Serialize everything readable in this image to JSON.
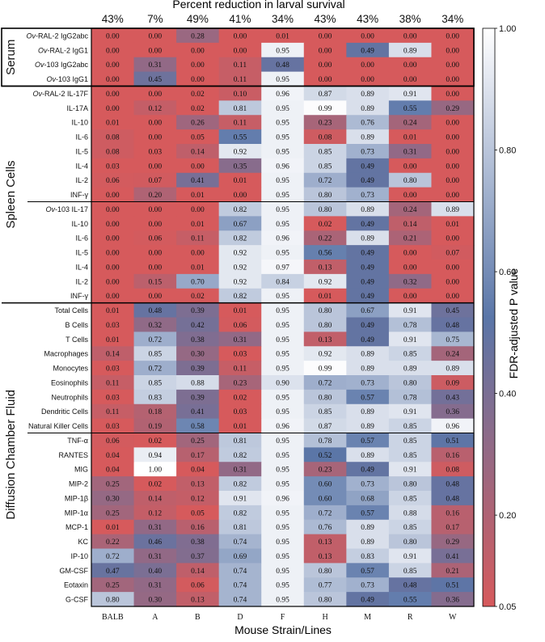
{
  "chart_data": {
    "type": "heatmap",
    "title": "Percent reduction in larval survival",
    "xlabel": "Mouse Strain/Lines",
    "colorbar_label": "FDR-adjusted P value",
    "colorbar_ticks": [
      "1.00",
      "0.80",
      "0.60",
      "0.40",
      "0.20",
      "0.05"
    ],
    "colorbar_range": [
      0.05,
      1.0
    ],
    "colors": {
      "low": "#d65a5c",
      "mid": "#5a76a8",
      "high": "#ffffff"
    },
    "columns": [
      "BALB",
      "A",
      "B",
      "D",
      "F",
      "H",
      "M",
      "R",
      "W"
    ],
    "percent_reduction": [
      "43%",
      "7%",
      "49%",
      "41%",
      "34%",
      "43%",
      "43%",
      "38%",
      "34%"
    ],
    "groups": [
      {
        "name": "Serum",
        "rows": [
          {
            "prefix": "Ov",
            "label": "-RAL-2 IgG2abc",
            "values": [
              "0.00",
              "0.00",
              "0.28",
              "0.00",
              "0.01",
              "0.00",
              "0.00",
              "0.00",
              "0.00"
            ]
          },
          {
            "prefix": "Ov",
            "label": "-RAL-2 IgG1",
            "values": [
              "0.00",
              "0.00",
              "0.00",
              "0.00",
              "0.95",
              "0.00",
              "0.49",
              "0.89",
              "0.00"
            ]
          },
          {
            "prefix": "Ov",
            "label": "-103 IgG2abc",
            "values": [
              "0.00",
              "0.31",
              "0.00",
              "0.11",
              "0.48",
              "0.00",
              "0.00",
              "0.00",
              "0.00"
            ]
          },
          {
            "prefix": "Ov",
            "label": "-103 IgG1",
            "values": [
              "0.00",
              "0.45",
              "0.00",
              "0.11",
              "0.95",
              "0.00",
              "0.00",
              "0.00",
              "0.00"
            ]
          }
        ]
      },
      {
        "name": "Spleen Cells",
        "rows": [
          {
            "prefix": "Ov",
            "label": "-RAL-2 IL-17F",
            "values": [
              "0.00",
              "0.00",
              "0.02",
              "0.10",
              "0.96",
              "0.87",
              "0.89",
              "0.91",
              "0.00"
            ]
          },
          {
            "label": "IL-17A",
            "values": [
              "0.00",
              "0.12",
              "0.02",
              "0.81",
              "0.95",
              "0.99",
              "0.89",
              "0.55",
              "0.29"
            ]
          },
          {
            "label": "IL-10",
            "values": [
              "0.01",
              "0.00",
              "0.26",
              "0.11",
              "0.95",
              "0.23",
              "0.76",
              "0.24",
              "0.00"
            ]
          },
          {
            "label": "IL-6",
            "values": [
              "0.08",
              "0.00",
              "0.05",
              "0.55",
              "0.95",
              "0.08",
              "0.89",
              "0.01",
              "0.00"
            ]
          },
          {
            "label": "IL-5",
            "values": [
              "0.08",
              "0.03",
              "0.14",
              "0.92",
              "0.95",
              "0.85",
              "0.73",
              "0.31",
              "0.00"
            ]
          },
          {
            "label": "IL-4",
            "values": [
              "0.03",
              "0.00",
              "0.00",
              "0.35",
              "0.96",
              "0.85",
              "0.49",
              "0.00",
              "0.00"
            ]
          },
          {
            "label": "IL-2",
            "values": [
              "0.06",
              "0.07",
              "0.41",
              "0.01",
              "0.95",
              "0.72",
              "0.49",
              "0.80",
              "0.00"
            ]
          },
          {
            "label": "INF-γ",
            "values": [
              "0.00",
              "0.20",
              "0.01",
              "0.00",
              "0.95",
              "0.80",
              "0.73",
              "0.00",
              "0.00"
            ]
          },
          {
            "prefix": "Ov",
            "label": "-103 IL-17",
            "values": [
              "0.00",
              "0.00",
              "0.00",
              "0.82",
              "0.95",
              "0.80",
              "0.89",
              "0.24",
              "0.89"
            ]
          },
          {
            "label": "IL-10",
            "values": [
              "0.00",
              "0.00",
              "0.01",
              "0.67",
              "0.95",
              "0.02",
              "0.49",
              "0.14",
              "0.01"
            ]
          },
          {
            "label": "IL-6",
            "values": [
              "0.00",
              "0.06",
              "0.11",
              "0.82",
              "0.96",
              "0.22",
              "0.89",
              "0.21",
              "0.00"
            ]
          },
          {
            "label": "IL-5",
            "values": [
              "0.00",
              "0.00",
              "0.00",
              "0.92",
              "0.95",
              "0.56",
              "0.49",
              "0.00",
              "0.07"
            ]
          },
          {
            "label": "IL-4",
            "values": [
              "0.00",
              "0.00",
              "0.01",
              "0.92",
              "0.97",
              "0.13",
              "0.49",
              "0.00",
              "0.00"
            ]
          },
          {
            "label": "IL-2",
            "values": [
              "0.00",
              "0.15",
              "0.70",
              "0.92",
              "0.84",
              "0.92",
              "0.49",
              "0.32",
              "0.00"
            ]
          },
          {
            "label": "INF-γ",
            "values": [
              "0.00",
              "0.00",
              "0.02",
              "0.82",
              "0.95",
              "0.01",
              "0.49",
              "0.00",
              "0.00"
            ]
          }
        ]
      },
      {
        "name": "Diffusion Chamber Fluid",
        "rows": [
          {
            "label": "Total Cells",
            "values": [
              "0.01",
              "0.48",
              "0.39",
              "0.01",
              "0.95",
              "0.80",
              "0.67",
              "0.91",
              "0.45"
            ]
          },
          {
            "label": "B Cells",
            "values": [
              "0.03",
              "0.32",
              "0.42",
              "0.06",
              "0.95",
              "0.80",
              "0.49",
              "0.78",
              "0.48"
            ]
          },
          {
            "label": "T Cells",
            "values": [
              "0.01",
              "0.72",
              "0.38",
              "0.31",
              "0.95",
              "0.13",
              "0.49",
              "0.91",
              "0.75"
            ]
          },
          {
            "label": "Macrophages",
            "values": [
              "0.14",
              "0.85",
              "0.30",
              "0.03",
              "0.95",
              "0.92",
              "0.89",
              "0.85",
              "0.24"
            ]
          },
          {
            "label": "Monocytes",
            "values": [
              "0.03",
              "0.72",
              "0.39",
              "0.11",
              "0.95",
              "0.99",
              "0.89",
              "0.89",
              "0.89"
            ]
          },
          {
            "label": "Eosinophils",
            "values": [
              "0.11",
              "0.85",
              "0.88",
              "0.23",
              "0.90",
              "0.72",
              "0.73",
              "0.80",
              "0.09"
            ]
          },
          {
            "label": "Neutrophils",
            "values": [
              "0.03",
              "0.83",
              "0.39",
              "0.02",
              "0.95",
              "0.80",
              "0.57",
              "0.78",
              "0.43"
            ]
          },
          {
            "label": "Dendritic Cells",
            "values": [
              "0.11",
              "0.18",
              "0.41",
              "0.03",
              "0.95",
              "0.85",
              "0.89",
              "0.91",
              "0.36"
            ]
          },
          {
            "label": "Natural Killer Cells",
            "values": [
              "0.03",
              "0.19",
              "0.58",
              "0.01",
              "0.96",
              "0.87",
              "0.89",
              "0.85",
              "0.96"
            ]
          },
          {
            "label": "TNF-α",
            "values": [
              "0.06",
              "0.02",
              "0.25",
              "0.81",
              "0.95",
              "0.78",
              "0.57",
              "0.85",
              "0.51"
            ]
          },
          {
            "label": "RANTES",
            "values": [
              "0.04",
              "0.94",
              "0.17",
              "0.82",
              "0.95",
              "0.52",
              "0.89",
              "0.85",
              "0.16"
            ]
          },
          {
            "label": "MIG",
            "values": [
              "0.04",
              "1.00",
              "0.04",
              "0.31",
              "0.95",
              "0.23",
              "0.49",
              "0.91",
              "0.08"
            ]
          },
          {
            "label": "MIP-2",
            "values": [
              "0.25",
              "0.02",
              "0.13",
              "0.82",
              "0.95",
              "0.60",
              "0.73",
              "0.80",
              "0.48"
            ]
          },
          {
            "label": "MIP-1β",
            "values": [
              "0.30",
              "0.14",
              "0.12",
              "0.91",
              "0.96",
              "0.60",
              "0.68",
              "0.85",
              "0.48"
            ]
          },
          {
            "label": "MIP-1α",
            "values": [
              "0.25",
              "0.12",
              "0.05",
              "0.82",
              "0.95",
              "0.72",
              "0.57",
              "0.88",
              "0.16"
            ]
          },
          {
            "label": "MCP-1",
            "values": [
              "0.01",
              "0.31",
              "0.16",
              "0.81",
              "0.95",
              "0.76",
              "0.89",
              "0.85",
              "0.17"
            ]
          },
          {
            "label": "KC",
            "values": [
              "0.22",
              "0.46",
              "0.38",
              "0.74",
              "0.95",
              "0.13",
              "0.89",
              "0.80",
              "0.29"
            ]
          },
          {
            "label": "IP-10",
            "values": [
              "0.72",
              "0.31",
              "0.37",
              "0.69",
              "0.95",
              "0.13",
              "0.83",
              "0.91",
              "0.41"
            ]
          },
          {
            "label": "GM-CSF",
            "values": [
              "0.47",
              "0.40",
              "0.14",
              "0.74",
              "0.95",
              "0.80",
              "0.57",
              "0.85",
              "0.21"
            ]
          },
          {
            "label": "Eotaxin",
            "values": [
              "0.25",
              "0.31",
              "0.06",
              "0.74",
              "0.95",
              "0.77",
              "0.73",
              "0.48",
              "0.51"
            ]
          },
          {
            "label": "G-CSF",
            "values": [
              "0.80",
              "0.30",
              "0.13",
              "0.74",
              "0.95",
              "0.80",
              "0.49",
              "0.55",
              "0.36"
            ]
          }
        ]
      }
    ]
  }
}
